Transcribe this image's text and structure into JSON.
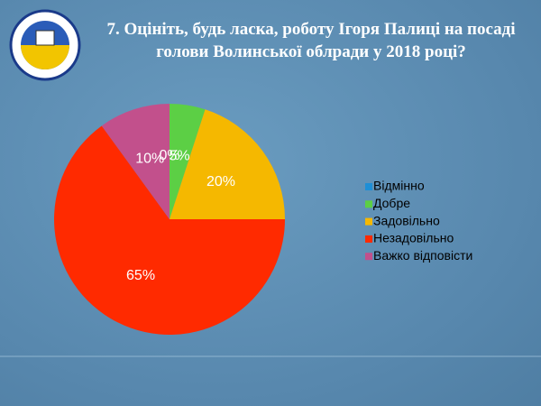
{
  "chart_data": {
    "type": "pie",
    "title": "7. Оцініть, будь ласка, роботу Ігоря Палиці на посаді голови Волинської облради у 2018 році?",
    "categories": [
      "Відмінно",
      "Добре",
      "Задовільно",
      "Незадовільно",
      "Важко відповісти"
    ],
    "values": [
      0,
      5,
      20,
      65,
      10
    ],
    "value_labels": [
      "0%",
      "5%",
      "20%",
      "65%",
      "10%"
    ],
    "colors": [
      "#1e8fd6",
      "#5ccf45",
      "#f5b800",
      "#ff2a00",
      "#c2508c"
    ],
    "legend": "right"
  }
}
